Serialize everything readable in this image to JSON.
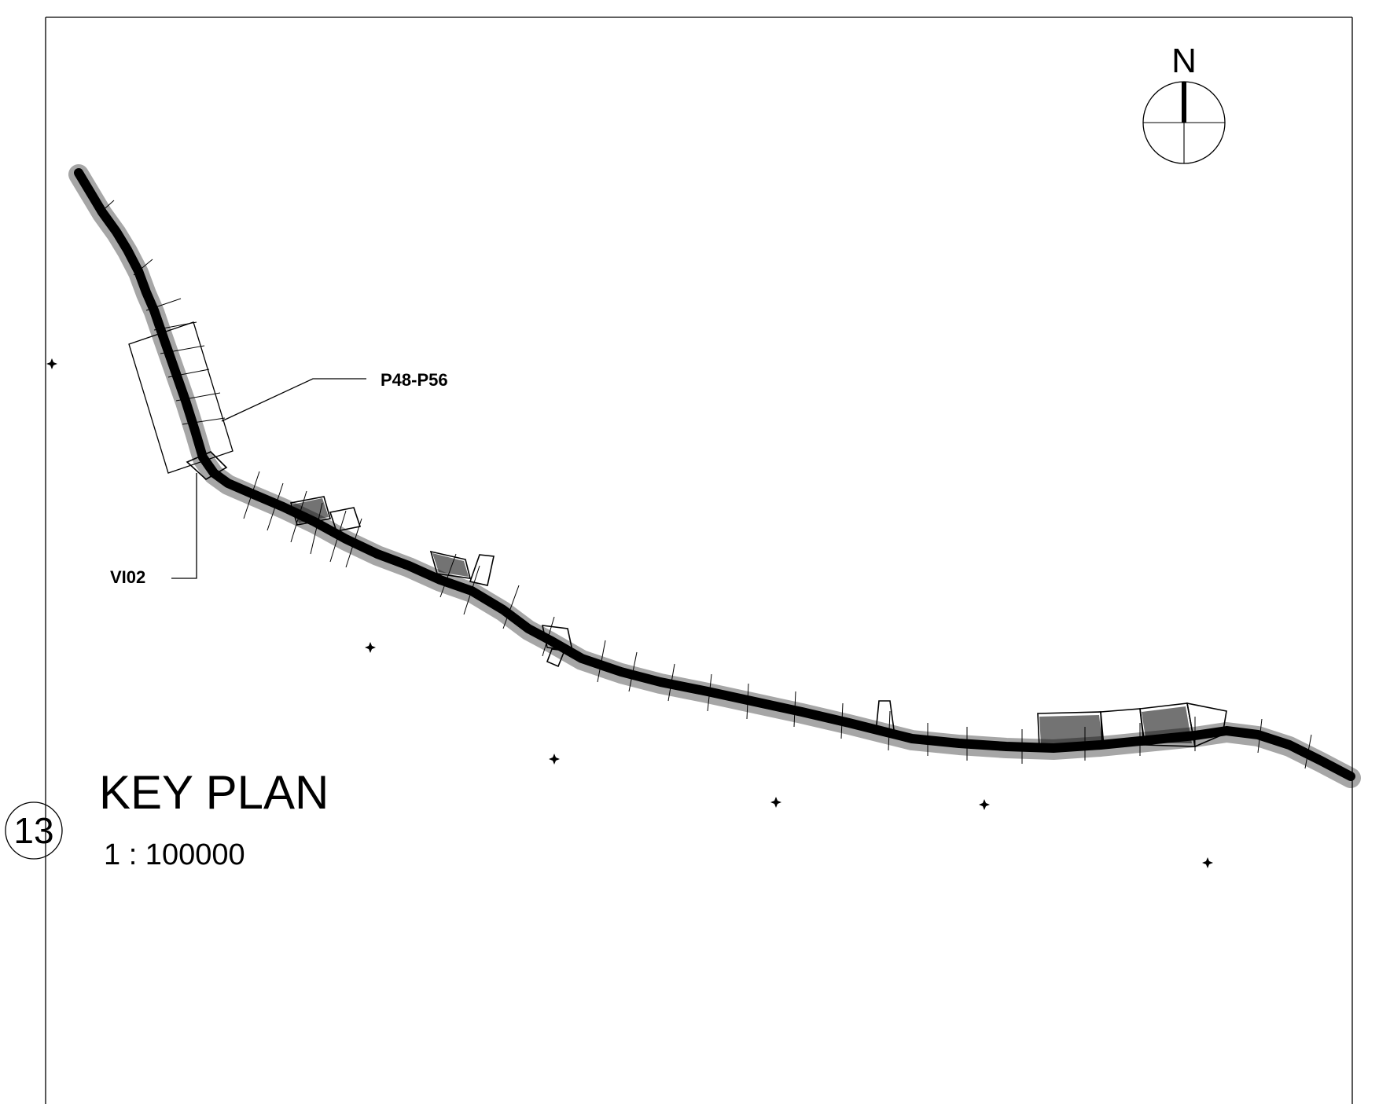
{
  "north_arrow": {
    "label": "N"
  },
  "callouts": {
    "detail_box": "P48-P56",
    "view_ref": "VI02"
  },
  "title_block": {
    "number": "13",
    "title": "KEY PLAN",
    "scale": "1 : 100000"
  },
  "colors": {
    "ink": "#000000",
    "paper": "#ffffff"
  }
}
